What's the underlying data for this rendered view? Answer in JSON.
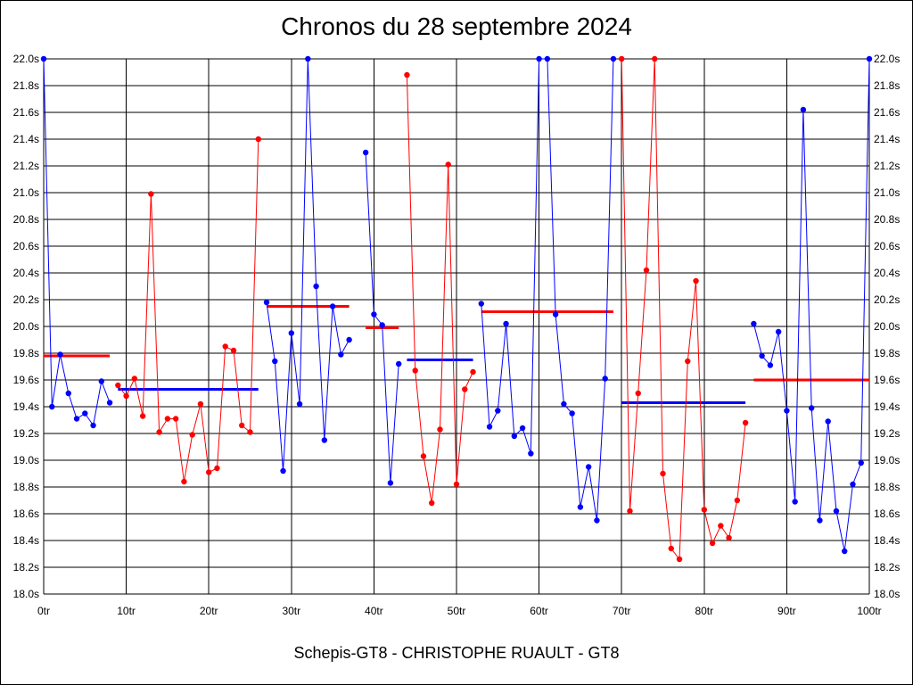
{
  "chart_data": {
    "type": "line",
    "title": "Chronos du 28 septembre 2024",
    "caption": "Schepis-GT8 - CHRISTOPHE RUAULT - GT8",
    "xlabel": "",
    "ylabel": "",
    "xlim": [
      0,
      100
    ],
    "ylim": [
      18.0,
      22.0
    ],
    "grid": true,
    "x_tick_labels": [
      "0tr",
      "10tr",
      "20tr",
      "30tr",
      "40tr",
      "50tr",
      "60tr",
      "70tr",
      "80tr",
      "90tr",
      "100tr"
    ],
    "y_tick_labels": [
      "18.0s",
      "18.2s",
      "18.4s",
      "18.6s",
      "18.8s",
      "19.0s",
      "19.2s",
      "19.4s",
      "19.6s",
      "19.8s",
      "20.0s",
      "20.2s",
      "20.4s",
      "20.6s",
      "20.8s",
      "21.0s",
      "21.2s",
      "21.4s",
      "21.6s",
      "21.8s",
      "22.0s"
    ],
    "colors": {
      "blue": "#0000ff",
      "red": "#ff0000",
      "grid": "#000000"
    },
    "series": [
      {
        "color": "blue",
        "x": [
          0,
          1,
          2,
          3,
          4,
          5,
          6,
          7,
          8
        ],
        "y": [
          22.0,
          19.4,
          19.79,
          19.5,
          19.31,
          19.35,
          19.26,
          19.59,
          19.43
        ]
      },
      {
        "color": "red",
        "x": [
          9,
          10,
          11,
          12,
          13,
          14,
          15,
          16,
          17,
          18,
          19,
          20,
          21,
          22,
          23,
          24,
          25,
          26
        ],
        "y": [
          19.56,
          19.48,
          19.61,
          19.33,
          20.99,
          19.21,
          19.31,
          19.31,
          18.84,
          19.19,
          19.42,
          18.91,
          18.94,
          19.85,
          19.82,
          19.26,
          19.21,
          21.4
        ]
      },
      {
        "color": "blue",
        "x": [
          27,
          28,
          29,
          30,
          31,
          32,
          33,
          34,
          35,
          36,
          37
        ],
        "y": [
          20.18,
          19.74,
          18.92,
          19.95,
          19.42,
          22.0,
          20.3,
          19.15,
          20.15,
          19.79,
          19.9
        ]
      },
      {
        "color": "blue",
        "x": [
          39,
          40,
          41,
          42,
          43
        ],
        "y": [
          21.3,
          20.09,
          20.01,
          18.83,
          19.72
        ]
      },
      {
        "color": "red",
        "x": [
          44,
          45,
          46,
          47,
          48,
          49,
          50,
          51,
          52
        ],
        "y": [
          21.88,
          19.67,
          19.03,
          18.68,
          19.23,
          21.21,
          18.82,
          19.53,
          19.66
        ]
      },
      {
        "color": "blue",
        "x": [
          53,
          54,
          55,
          56,
          57,
          58,
          59,
          60,
          61,
          62,
          63,
          64,
          65,
          66,
          67,
          68,
          69
        ],
        "y": [
          20.17,
          19.25,
          19.37,
          20.02,
          19.18,
          19.24,
          19.05,
          22.0,
          22.0,
          20.09,
          19.42,
          19.35,
          18.65,
          18.95,
          18.55,
          19.61,
          22.0
        ]
      },
      {
        "color": "red",
        "x": [
          70,
          71,
          72,
          73,
          74,
          75,
          76,
          77,
          78,
          79,
          80,
          81,
          82,
          83,
          84,
          85
        ],
        "y": [
          22.0,
          18.62,
          19.5,
          20.42,
          22.0,
          18.9,
          18.34,
          18.26,
          19.74,
          20.34,
          18.63,
          18.38,
          18.51,
          18.42,
          18.7,
          19.28
        ]
      },
      {
        "color": "blue",
        "x": [
          86,
          87,
          88,
          89,
          90,
          91,
          92,
          93,
          94,
          95,
          96,
          97,
          98,
          99,
          100
        ],
        "y": [
          20.02,
          19.78,
          19.71,
          19.96,
          19.37,
          18.69,
          21.62,
          19.39,
          18.55,
          19.29,
          18.62,
          18.32,
          18.82,
          18.98,
          22.0
        ]
      }
    ],
    "averages": [
      {
        "color": "red",
        "x": [
          0,
          8
        ],
        "y": 19.78
      },
      {
        "color": "blue",
        "x": [
          9,
          26
        ],
        "y": 19.53
      },
      {
        "color": "red",
        "x": [
          27,
          37
        ],
        "y": 20.15
      },
      {
        "color": "red",
        "x": [
          39,
          43
        ],
        "y": 19.99
      },
      {
        "color": "blue",
        "x": [
          44,
          52
        ],
        "y": 19.75
      },
      {
        "color": "red",
        "x": [
          53,
          69
        ],
        "y": 20.11
      },
      {
        "color": "blue",
        "x": [
          70,
          85
        ],
        "y": 19.43
      },
      {
        "color": "red",
        "x": [
          86,
          100
        ],
        "y": 19.6
      }
    ]
  }
}
